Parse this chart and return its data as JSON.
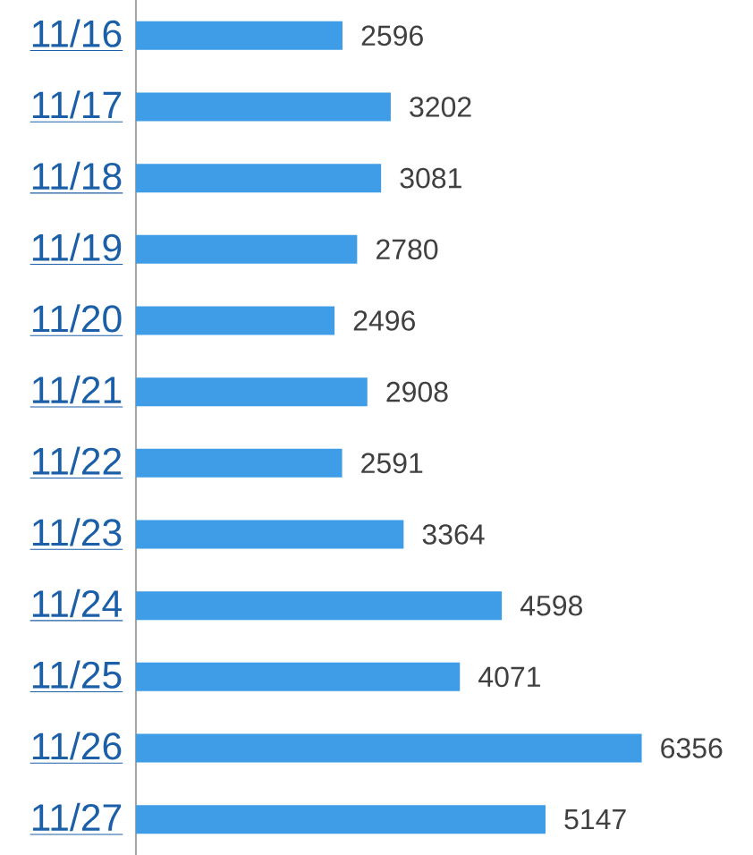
{
  "chart_data": {
    "type": "bar",
    "orientation": "horizontal",
    "data_labels": true,
    "color": "#3e9de6",
    "categories": [
      "11/16",
      "11/17",
      "11/18",
      "11/19",
      "11/20",
      "11/21",
      "11/22",
      "11/23",
      "11/24",
      "11/25",
      "11/26",
      "11/27"
    ],
    "values": [
      2596,
      3202,
      3081,
      2780,
      2496,
      2908,
      2591,
      3364,
      4598,
      4071,
      6356,
      5147
    ]
  }
}
